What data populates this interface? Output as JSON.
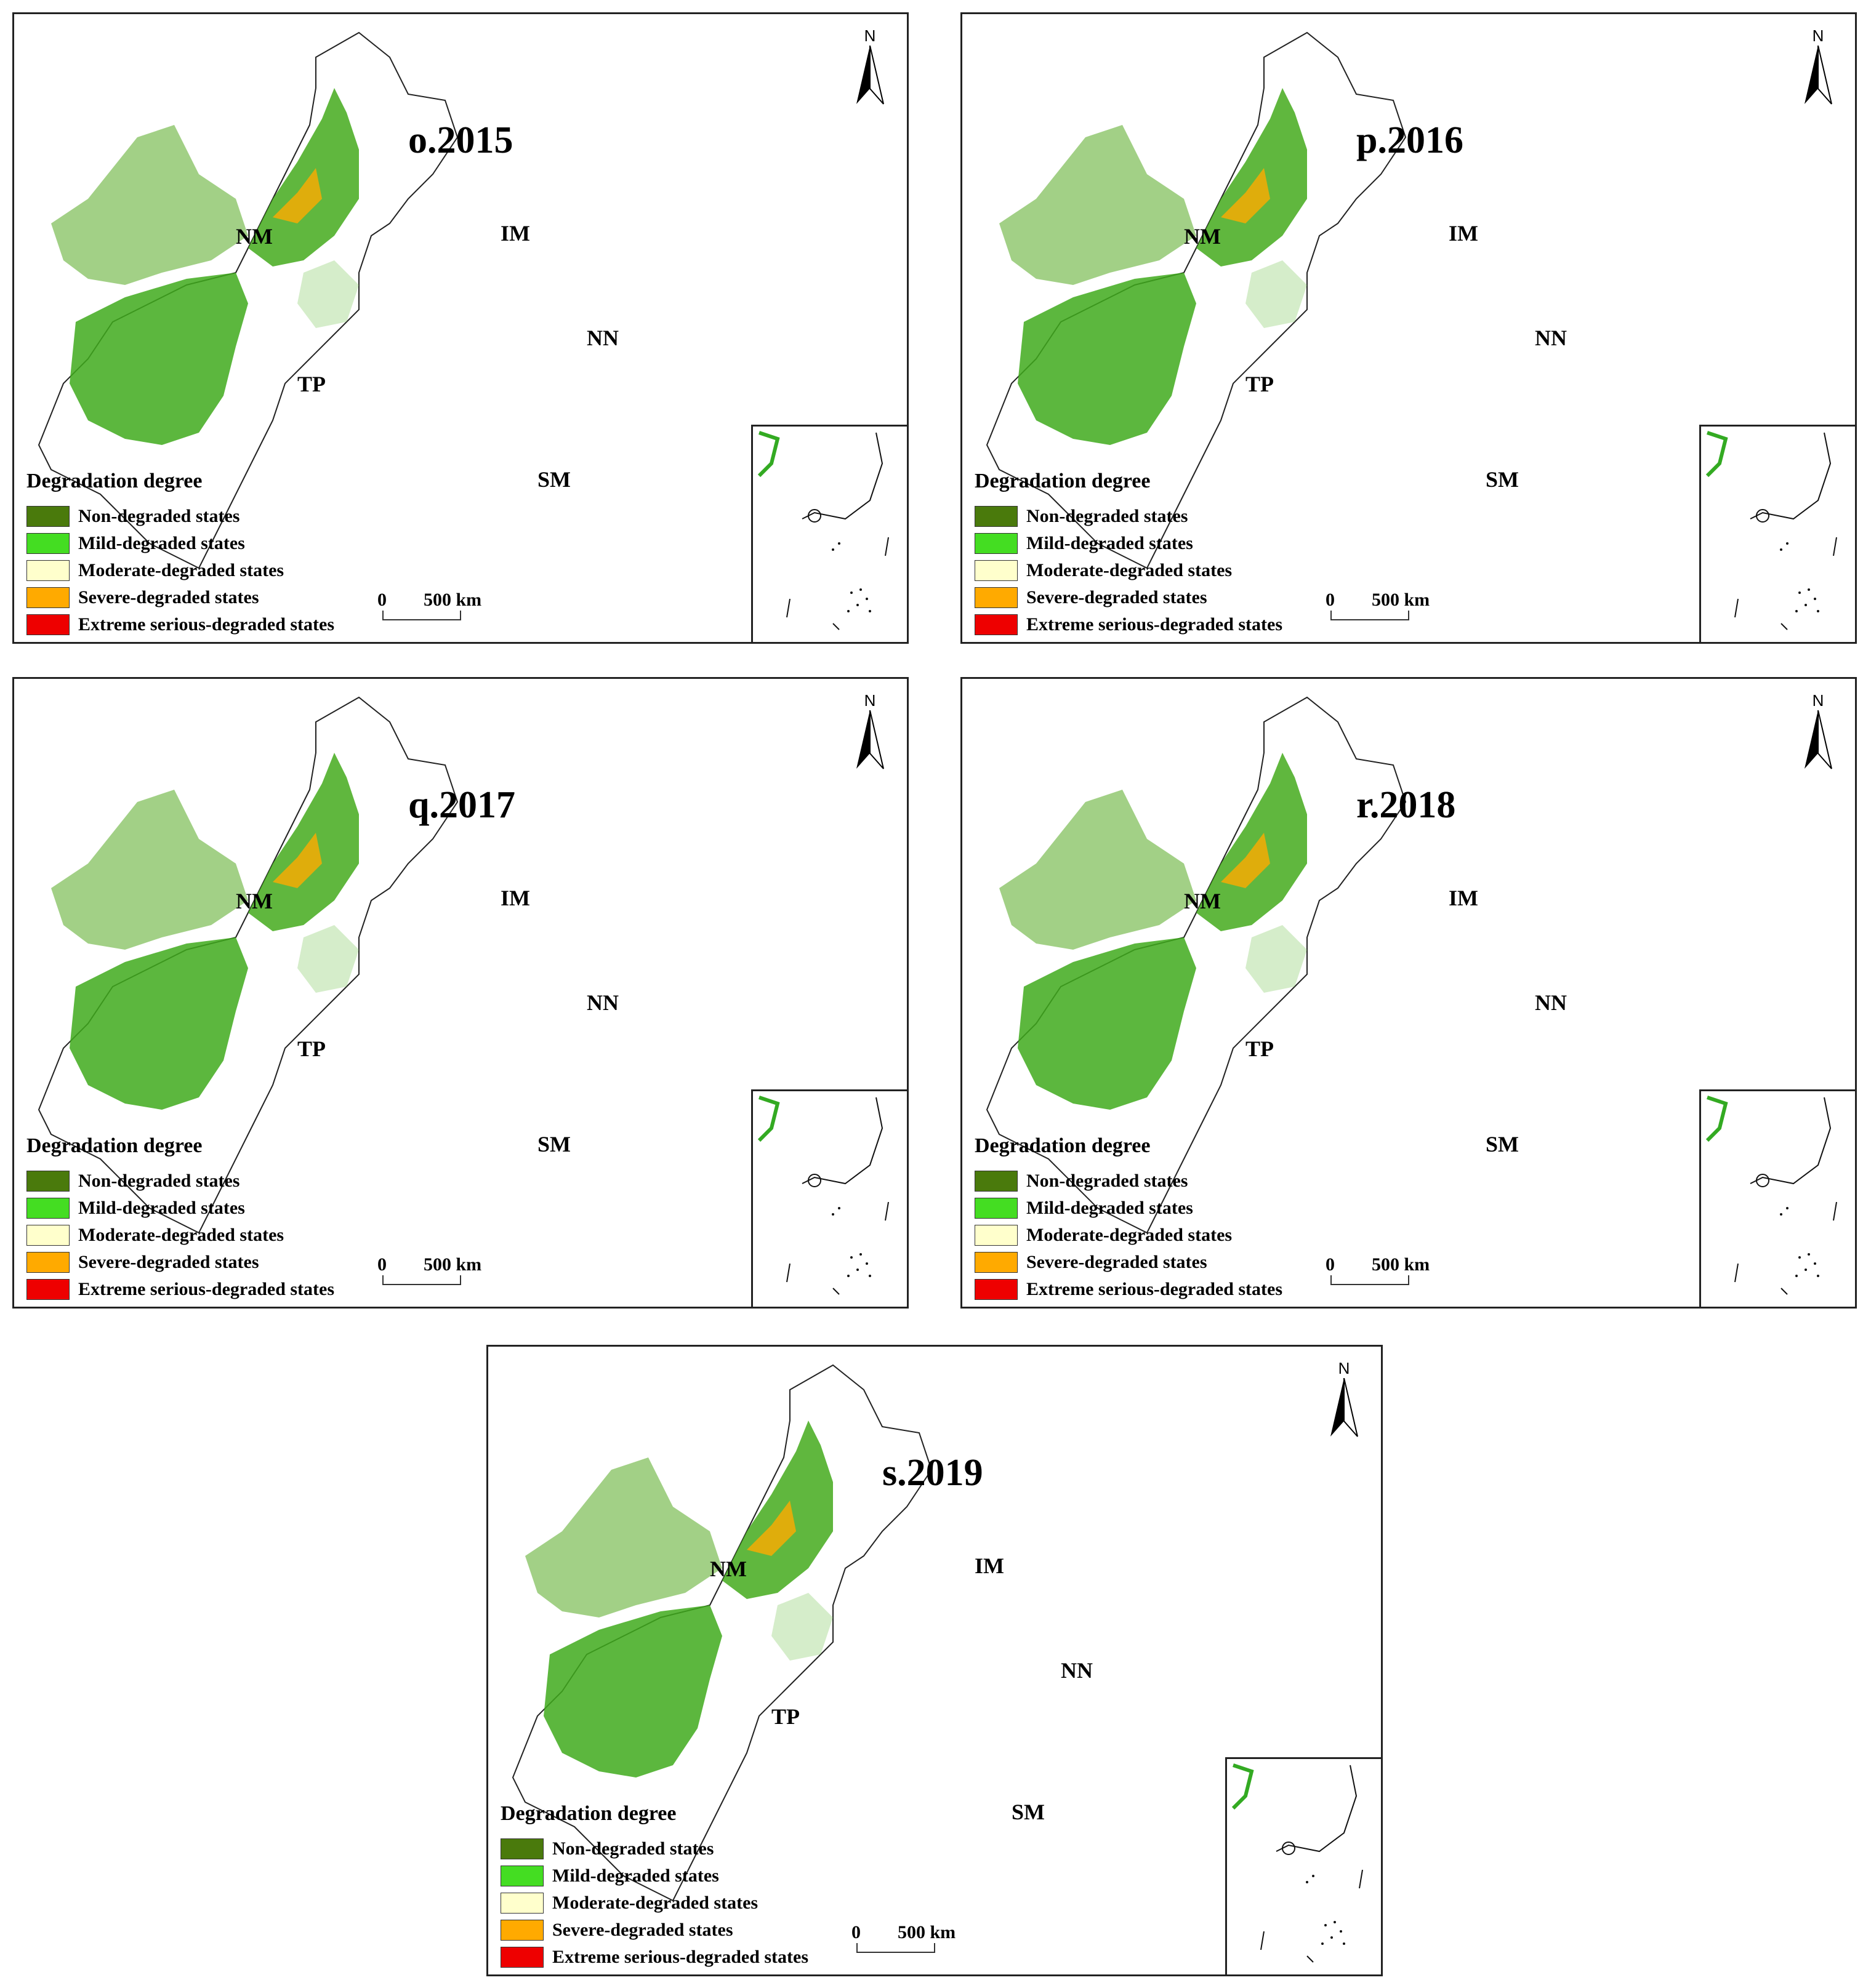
{
  "panels": [
    {
      "title": "o.2015"
    },
    {
      "title": "p.2016"
    },
    {
      "title": "q.2017"
    },
    {
      "title": "r.2018"
    },
    {
      "title": "s.2019"
    }
  ],
  "regions": {
    "nm": "NM",
    "im": "IM",
    "nn": "NN",
    "tp": "TP",
    "sm": "SM"
  },
  "legend": {
    "title": "Degradation degree",
    "items": [
      {
        "label": "Non-degraded states",
        "color": "#4a7a0c"
      },
      {
        "label": "Mild-degraded states",
        "color": "#44dd22"
      },
      {
        "label": "Moderate-degraded states",
        "color": "#ffffcc"
      },
      {
        "label": "Severe-degraded states",
        "color": "#ffaa00"
      },
      {
        "label": "Extreme serious-degraded states",
        "color": "#ee0000"
      }
    ]
  },
  "scale_bar": {
    "start": "0",
    "end": "500",
    "unit": "km"
  },
  "north_arrow": {
    "label": "N"
  }
}
